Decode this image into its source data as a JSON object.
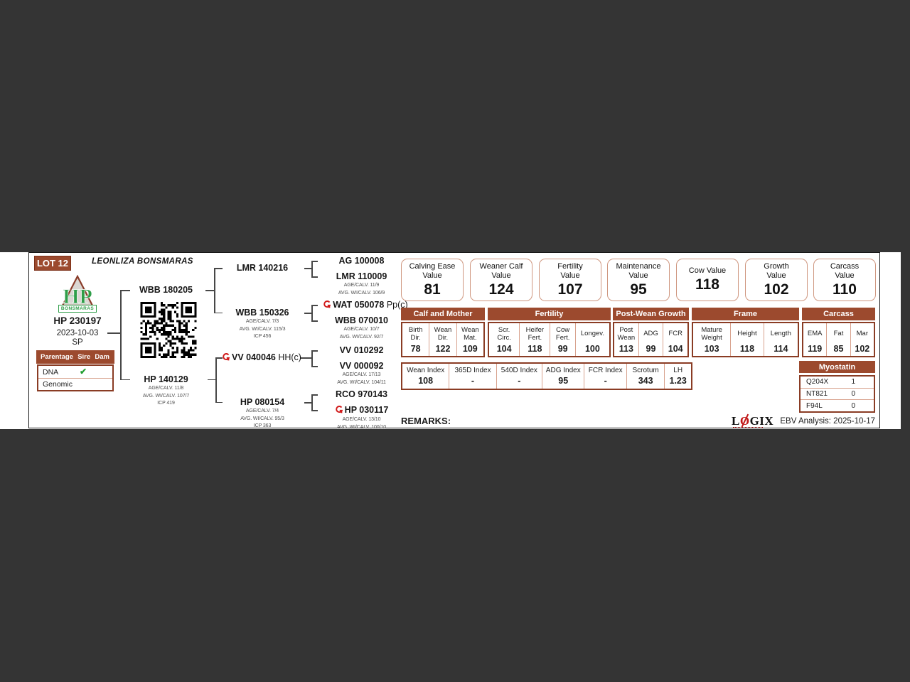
{
  "colors": {
    "accent": "#9c4a2e",
    "border_dark": "#8a3c24",
    "border_light": "#d8a28e",
    "green": "#2f9e49",
    "red": "#d11a1a",
    "page_bg": "#343434"
  },
  "lot": "LOT 12",
  "stud": "LEONLIZA BONSMARAS",
  "brand": {
    "letters": "HP",
    "name": "BONSMARAS"
  },
  "animal": {
    "id": "HP 230197",
    "dob": "2023-10-03",
    "status": "SP"
  },
  "parentage": {
    "title": "Parentage",
    "col_sire": "Sire",
    "col_dam": "Dam",
    "rows": [
      {
        "label": "DNA",
        "sire": "✔"
      },
      {
        "label": "Genomic"
      }
    ]
  },
  "pedigree": {
    "s": {
      "id": "WBB 180205"
    },
    "d": {
      "id": "HP 140129",
      "l1": "AGE/CALV. 11/8",
      "l2": "AVG. WI/CALV. 107/7",
      "l3": "ICP 419"
    },
    "ss": {
      "id": "LMR 140216"
    },
    "sd": {
      "id": "WBB 150326",
      "l1": "AGE/CALV. 7/3",
      "l2": "AVG. WI/CALV. 115/3",
      "l3": "ICP 456"
    },
    "ds": {
      "id": "VV 040046",
      "sfx": "HH(c)"
    },
    "dd": {
      "id": "HP 080154",
      "l1": "AGE/CALV. 7/4",
      "l2": "AVG. WI/CALV. 95/3",
      "l3": "ICP 363"
    },
    "sss": {
      "id": "AG 100008"
    },
    "ssd": {
      "id": "LMR 110009",
      "l1": "AGE/CALV. 11/9",
      "l2": "AVG. WI/CALV. 106/9"
    },
    "sds": {
      "id": "WAT 050078",
      "sfx": "Pp(c)"
    },
    "sdd": {
      "id": "WBB 070010",
      "l1": "AGE/CALV. 10/7",
      "l2": "AVG. WI/CALV. 92/7"
    },
    "dss": {
      "id": "VV 010292"
    },
    "dsd": {
      "id": "VV 000092",
      "l1": "AGE/CALV. 17/13",
      "l2": "AVG. WI/CALV. 104/11"
    },
    "dds": {
      "id": "RCO 970143"
    },
    "ddd": {
      "id": "HP 030117",
      "l1": "AGE/CALV. 13/10",
      "l2": "AVG. WI/CALV. 100/10"
    }
  },
  "values": [
    {
      "l": "Calving Ease\nValue",
      "v": "81"
    },
    {
      "l": "Weaner Calf\nValue",
      "v": "124"
    },
    {
      "l": "Fertility\nValue",
      "v": "107"
    },
    {
      "l": "Maintenance\nValue",
      "v": "95"
    },
    {
      "l": "Cow Value",
      "v": "118"
    },
    {
      "l": "Growth\nValue",
      "v": "102"
    },
    {
      "l": "Carcass\nValue",
      "v": "110"
    }
  ],
  "groups": [
    {
      "title": "Calf and Mother",
      "cols": [
        {
          "l": "Birth\nDir.",
          "v": "78"
        },
        {
          "l": "Wean\nDir.",
          "v": "122"
        },
        {
          "l": "Wean\nMat.",
          "v": "109"
        }
      ]
    },
    {
      "title": "Fertility",
      "cols": [
        {
          "l": "Scr.\nCirc.",
          "v": "104"
        },
        {
          "l": "Heifer\nFert.",
          "v": "118"
        },
        {
          "l": "Cow\nFert.",
          "v": "99"
        },
        {
          "l": "Longev.",
          "v": "100"
        }
      ]
    },
    {
      "title": "Post-Wean Growth",
      "cols": [
        {
          "l": "Post\nWean",
          "v": "113"
        },
        {
          "l": "ADG",
          "v": "99"
        },
        {
          "l": "FCR",
          "v": "104"
        }
      ]
    },
    {
      "title": "Frame",
      "cols": [
        {
          "l": "Mature\nWeight",
          "v": "103"
        },
        {
          "l": "Height",
          "v": "118"
        },
        {
          "l": "Length",
          "v": "114"
        }
      ]
    },
    {
      "title": "Carcass",
      "cols": [
        {
          "l": "EMA",
          "v": "119"
        },
        {
          "l": "Fat",
          "v": "85"
        },
        {
          "l": "Mar",
          "v": "102"
        }
      ]
    }
  ],
  "indexes": [
    {
      "l": "Wean Index",
      "v": "108"
    },
    {
      "l": "365D Index",
      "v": "-"
    },
    {
      "l": "540D Index",
      "v": "-"
    },
    {
      "l": "ADG Index",
      "v": "95"
    },
    {
      "l": "FCR Index",
      "v": "-"
    },
    {
      "l": "Scrotum",
      "v": "343"
    },
    {
      "l": "LH",
      "v": "1.23"
    }
  ],
  "myostatin": {
    "title": "Myostatin",
    "rows": [
      {
        "g": "Q204X",
        "v": "1"
      },
      {
        "g": "NT821",
        "v": "0"
      },
      {
        "g": "F94L",
        "v": "0"
      }
    ]
  },
  "footer": {
    "remarks": "REMARKS:",
    "logix_l": "L",
    "logix_o": "O",
    "logix_rest": "GIX",
    "analysis": "EBV Analysis: 2025-10-17"
  }
}
